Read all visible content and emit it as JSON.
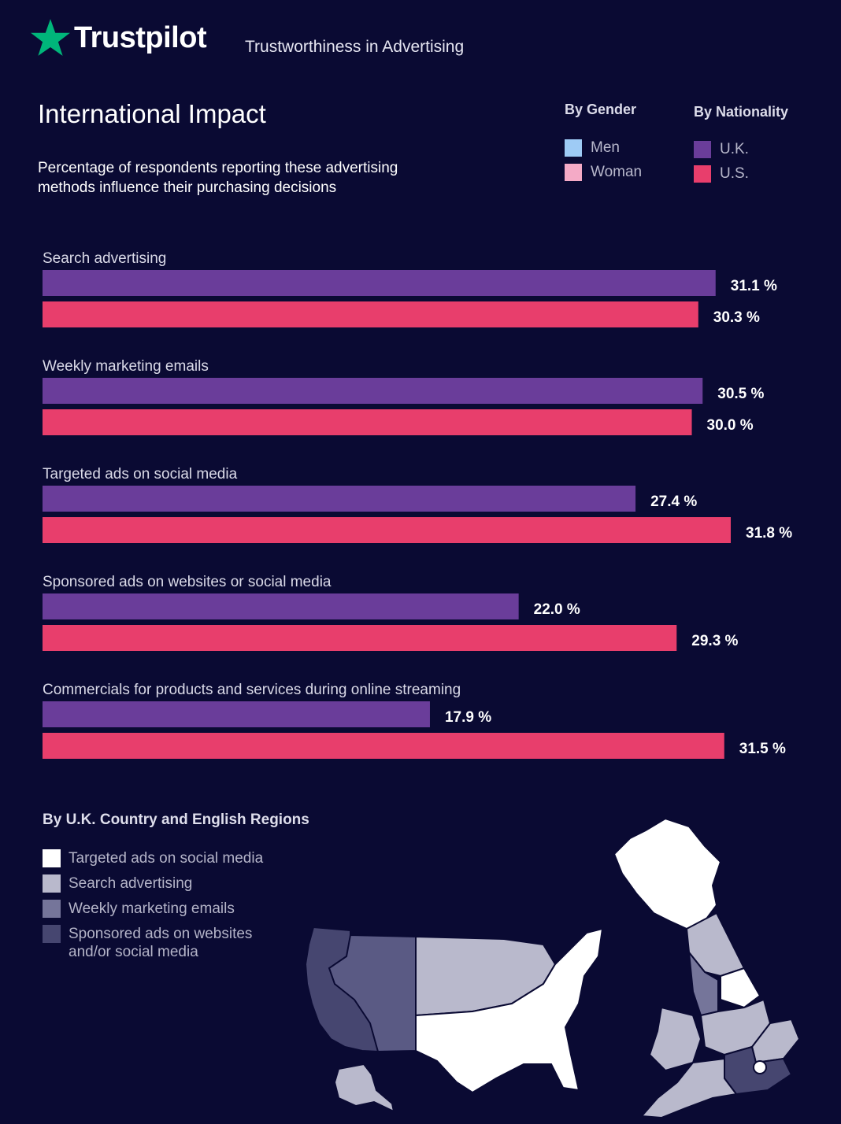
{
  "header": {
    "brand": "Trustpilot",
    "tagline": "Trustworthiness in Advertising"
  },
  "title": "International Impact",
  "subtitle": "Percentage of respondents reporting these advertising methods influence their purchasing decisions",
  "legend": {
    "gender_heading": "By Gender",
    "gender_items": [
      {
        "label": "Men",
        "color": "#9ecbf5"
      },
      {
        "label": "Woman",
        "color": "#f4aac6"
      }
    ],
    "nationality_heading": "By Nationality",
    "nationality_items": [
      {
        "label": "U.K.",
        "color": "#6a3d9a"
      },
      {
        "label": "U.S.",
        "color": "#e83e6c"
      }
    ]
  },
  "chart_data": {
    "type": "bar",
    "orientation": "horizontal",
    "unit": "%",
    "xlim": [
      0,
      31.8
    ],
    "categories": [
      "Search advertising",
      "Weekly marketing emails",
      "Targeted ads on social media",
      "Sponsored ads on websites or social media",
      "Commercials for products and services during online streaming"
    ],
    "series": [
      {
        "name": "U.K.",
        "color": "#6a3d9a",
        "values": [
          31.1,
          30.5,
          27.4,
          22.0,
          17.9
        ],
        "labels": [
          "31.1 %",
          "30.5 %",
          "27.4 %",
          "22.0 %",
          "17.9 %"
        ]
      },
      {
        "name": "U.S.",
        "color": "#e83e6c",
        "values": [
          30.3,
          30.0,
          31.8,
          29.3,
          31.5
        ],
        "labels": [
          "30.3 %",
          "30.0 %",
          "31.8 %",
          "29.3 %",
          "31.5 %"
        ]
      }
    ]
  },
  "regions": {
    "title": "By U.K. Country and English Regions",
    "legend": [
      {
        "label": "Targeted ads on social media",
        "color": "#ffffff"
      },
      {
        "label": "Search advertising",
        "color": "#b9b9cc"
      },
      {
        "label": "Weekly marketing emails",
        "color": "#75759a"
      },
      {
        "label": "Sponsored ads on websites and/or social media",
        "color": "#464670"
      }
    ]
  }
}
